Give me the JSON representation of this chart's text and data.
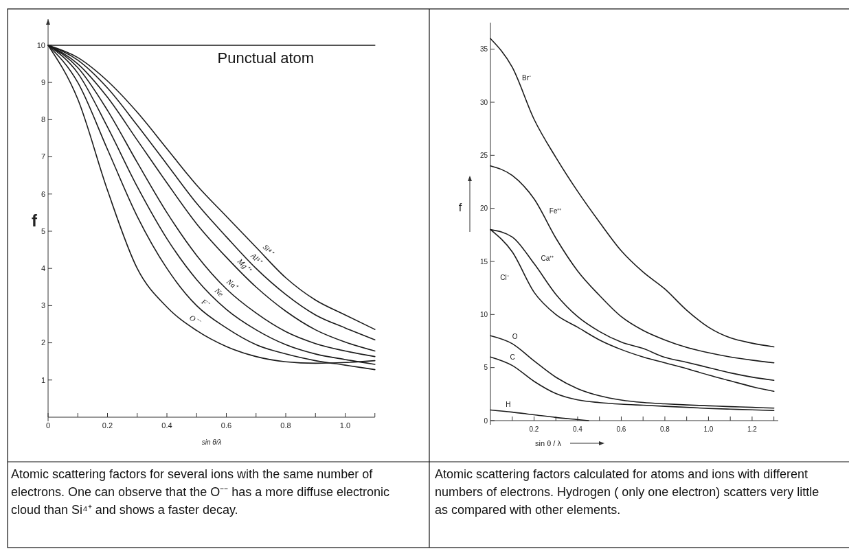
{
  "chart_data": [
    {
      "type": "line",
      "xlabel": "sin θ/λ",
      "ylabel": "f",
      "xlim": [
        0,
        1.1
      ],
      "ylim": [
        0,
        10.7
      ],
      "xticks": [
        0,
        {
          "value": 0.1,
          "label": null
        },
        0.2,
        {
          "value": 0.3,
          "label": null
        },
        0.4,
        {
          "value": 0.5,
          "label": null
        },
        0.6,
        {
          "value": 0.7,
          "label": null
        },
        0.8,
        {
          "value": 0.9,
          "label": null
        },
        {
          "value": 1.0,
          "label": "1.0"
        },
        {
          "value": 1.1,
          "label": null
        }
      ],
      "yticks": [
        1,
        2,
        3,
        4,
        5,
        6,
        7,
        8,
        9,
        10
      ],
      "x": [
        0,
        0.1,
        0.2,
        0.3,
        0.4,
        0.5,
        0.6,
        0.7,
        0.8,
        0.9,
        1.0,
        1.1
      ],
      "series": [
        {
          "name": "Punctual atom",
          "color": "#1a1a1a",
          "x": [
            0,
            1.1
          ],
          "values": [
            10,
            10
          ]
        },
        {
          "name": "Si⁴⁺",
          "color": "#1a1a1a",
          "values": [
            10,
            9.67,
            9.04,
            8.2,
            7.22,
            6.24,
            5.4,
            4.57,
            3.75,
            3.15,
            2.75,
            2.36
          ]
        },
        {
          "name": "Al³⁺",
          "color": "#1a1a1a",
          "values": [
            10,
            9.6,
            8.85,
            7.85,
            6.8,
            5.75,
            4.85,
            4.0,
            3.3,
            2.75,
            2.4,
            2.08
          ]
        },
        {
          "name": "Mg⁺⁺",
          "color": "#1a1a1a",
          "values": [
            10,
            9.5,
            8.6,
            7.45,
            6.3,
            5.2,
            4.3,
            3.5,
            2.85,
            2.35,
            2.02,
            1.78
          ]
        },
        {
          "name": "Na⁺",
          "color": "#1a1a1a",
          "values": [
            10,
            9.4,
            8.25,
            6.85,
            5.5,
            4.35,
            3.45,
            2.8,
            2.3,
            1.98,
            1.78,
            1.63
          ]
        },
        {
          "name": "Ne",
          "color": "#1a1a1a",
          "values": [
            10,
            9.25,
            7.8,
            6.2,
            4.8,
            3.7,
            2.9,
            2.35,
            1.95,
            1.7,
            1.55,
            1.42
          ]
        },
        {
          "name": "F⁻",
          "color": "#1a1a1a",
          "values": [
            10,
            9.0,
            7.2,
            5.4,
            4.0,
            3.0,
            2.4,
            1.95,
            1.7,
            1.52,
            1.4,
            1.28
          ]
        },
        {
          "name": "O⁻⁻",
          "color": "#1a1a1a",
          "values": [
            10,
            8.55,
            6.1,
            4.0,
            2.96,
            2.33,
            1.9,
            1.63,
            1.49,
            1.45,
            1.47,
            1.52
          ]
        }
      ],
      "annotations": [
        "Atomic scattering factors for several ions with the same number of electrons. One can observe that the O⁻⁻ has a more diffuse electronic cloud than Si⁴⁺ and shows a faster decay."
      ]
    },
    {
      "type": "line",
      "xlabel": "sin θ / λ",
      "ylabel": "f",
      "xlim": [
        0,
        1.32
      ],
      "ylim": [
        0,
        37.5
      ],
      "xticks": [
        {
          "value": 0.1,
          "label": null
        },
        0.2,
        {
          "value": 0.3,
          "label": null
        },
        0.4,
        {
          "value": 0.5,
          "label": null
        },
        0.6,
        {
          "value": 0.7,
          "label": null
        },
        0.8,
        {
          "value": 0.9,
          "label": null
        },
        {
          "value": 1.0,
          "label": "1.0"
        },
        {
          "value": 1.1,
          "label": null
        },
        1.2,
        {
          "value": 1.3,
          "label": null
        }
      ],
      "yticks": [
        0,
        5,
        10,
        15,
        20,
        25,
        30,
        35
      ],
      "x": [
        0,
        0.1,
        0.2,
        0.3,
        0.4,
        0.5,
        0.6,
        0.7,
        0.8,
        0.9,
        1.0,
        1.1,
        1.2,
        1.3
      ],
      "series": [
        {
          "name": "Br⁻",
          "color": "#1a1a1a",
          "values": [
            36,
            33.3,
            28.4,
            24.8,
            21.6,
            18.7,
            16.0,
            14.0,
            12.4,
            10.4,
            8.8,
            7.8,
            7.3,
            6.95
          ]
        },
        {
          "name": "Fe⁺⁺",
          "color": "#1a1a1a",
          "values": [
            24,
            23.1,
            20.9,
            17.2,
            14.1,
            11.8,
            9.8,
            8.5,
            7.6,
            6.9,
            6.4,
            6.0,
            5.7,
            5.45
          ]
        },
        {
          "name": "Ca⁺⁺",
          "color": "#1a1a1a",
          "values": [
            18,
            17.3,
            14.8,
            11.9,
            9.8,
            8.4,
            7.4,
            6.8,
            5.96,
            5.5,
            5.0,
            4.5,
            4.1,
            3.8
          ]
        },
        {
          "name": "Cl⁻",
          "color": "#1a1a1a",
          "values": [
            18,
            15.9,
            12.1,
            10.0,
            8.8,
            7.6,
            6.7,
            6.0,
            5.45,
            4.9,
            4.3,
            3.75,
            3.2,
            2.76
          ]
        },
        {
          "name": "O",
          "color": "#1a1a1a",
          "values": [
            8,
            7.25,
            5.63,
            4.09,
            3.01,
            2.34,
            1.94,
            1.71,
            1.58,
            1.48,
            1.4,
            1.32,
            1.25,
            1.18
          ]
        },
        {
          "name": "C",
          "color": "#1a1a1a",
          "values": [
            6,
            5.2,
            3.7,
            2.55,
            1.95,
            1.7,
            1.55,
            1.45,
            1.35,
            1.25,
            1.15,
            1.08,
            1.02,
            0.95
          ]
        },
        {
          "name": "H",
          "color": "#1a1a1a",
          "x": [
            0,
            0.1,
            0.2,
            0.3,
            0.4,
            0.45
          ],
          "values": [
            1,
            0.8,
            0.55,
            0.3,
            0.1,
            0
          ]
        }
      ],
      "annotations": [
        "Atomic scattering factors calculated for atoms and ions with different numbers of electrons.  Hydrogen ( only one electron) scatters very little as compared with other elements."
      ]
    }
  ]
}
